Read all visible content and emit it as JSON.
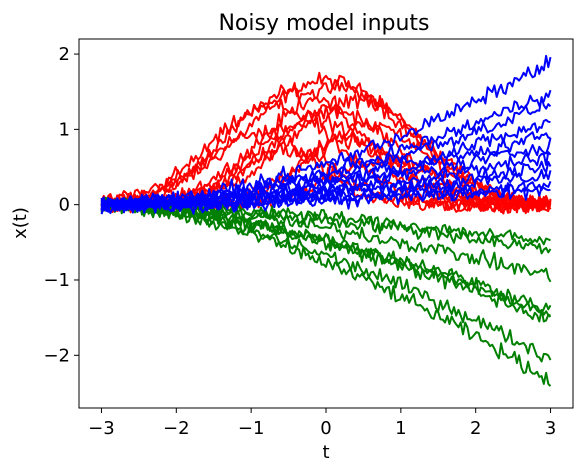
{
  "chart_data": {
    "type": "line",
    "title": "Noisy model inputs",
    "xlabel": "t",
    "ylabel": "x(t)",
    "xlim": [
      -3.3,
      3.3
    ],
    "ylim": [
      -2.7,
      2.2
    ],
    "x_ticks": [
      -3,
      -2,
      -1,
      0,
      1,
      2,
      3
    ],
    "x_tick_labels": [
      "−3",
      "−2",
      "−1",
      "0",
      "1",
      "2",
      "3"
    ],
    "y_ticks": [
      -2,
      -1,
      0,
      1,
      2
    ],
    "y_tick_labels": [
      "−2",
      "−1",
      "0",
      "1",
      "2"
    ],
    "grid": false,
    "legend": "none",
    "line_width": 2,
    "noise_amplitude": 0.07,
    "samples_per_curve": 200,
    "series_groups": [
      {
        "group": "red",
        "color": "#ff0000",
        "description": "bump rising from ~0 to peak near t=-0.5..1 then back to ~0 at t=3",
        "curves": [
          {
            "peak": 1.65,
            "center": 0.0,
            "width": 1.5
          },
          {
            "peak": 1.55,
            "center": 0.2,
            "width": 1.4
          },
          {
            "peak": 1.5,
            "center": -0.4,
            "width": 1.3
          },
          {
            "peak": 1.4,
            "center": 0.4,
            "width": 1.3
          },
          {
            "peak": 1.3,
            "center": -0.7,
            "width": 1.2
          },
          {
            "peak": 1.25,
            "center": 0.1,
            "width": 1.2
          },
          {
            "peak": 1.15,
            "center": -0.2,
            "width": 1.1
          },
          {
            "peak": 1.05,
            "center": 0.6,
            "width": 1.1
          },
          {
            "peak": 0.95,
            "center": -0.9,
            "width": 1.0
          },
          {
            "peak": 0.85,
            "center": 0.3,
            "width": 1.0
          },
          {
            "peak": 0.75,
            "center": -0.5,
            "width": 0.9
          },
          {
            "peak": 0.6,
            "center": 0.8,
            "width": 1.0
          }
        ]
      },
      {
        "group": "green",
        "color": "#008000",
        "description": "starting near 0 and decreasing quadratically to between -0.5 and -2.4 at t=3",
        "curves": [
          {
            "end": -2.35
          },
          {
            "end": -2.05
          },
          {
            "end": -1.55
          },
          {
            "end": -1.45
          },
          {
            "end": -1.4
          },
          {
            "end": -0.95
          },
          {
            "end": -0.6
          },
          {
            "end": -0.5
          }
        ]
      },
      {
        "group": "blue",
        "color": "#0000ff",
        "description": "starting near 0 and increasing to between 0.2 and 1.9 at t=3",
        "curves": [
          {
            "end": 1.9
          },
          {
            "end": 1.5
          },
          {
            "end": 1.35
          },
          {
            "end": 1.1
          },
          {
            "end": 0.95
          },
          {
            "end": 0.8
          },
          {
            "end": 0.65
          },
          {
            "end": 0.5
          },
          {
            "end": 0.4
          },
          {
            "end": 0.25
          },
          {
            "end": 0.2
          }
        ]
      }
    ]
  }
}
